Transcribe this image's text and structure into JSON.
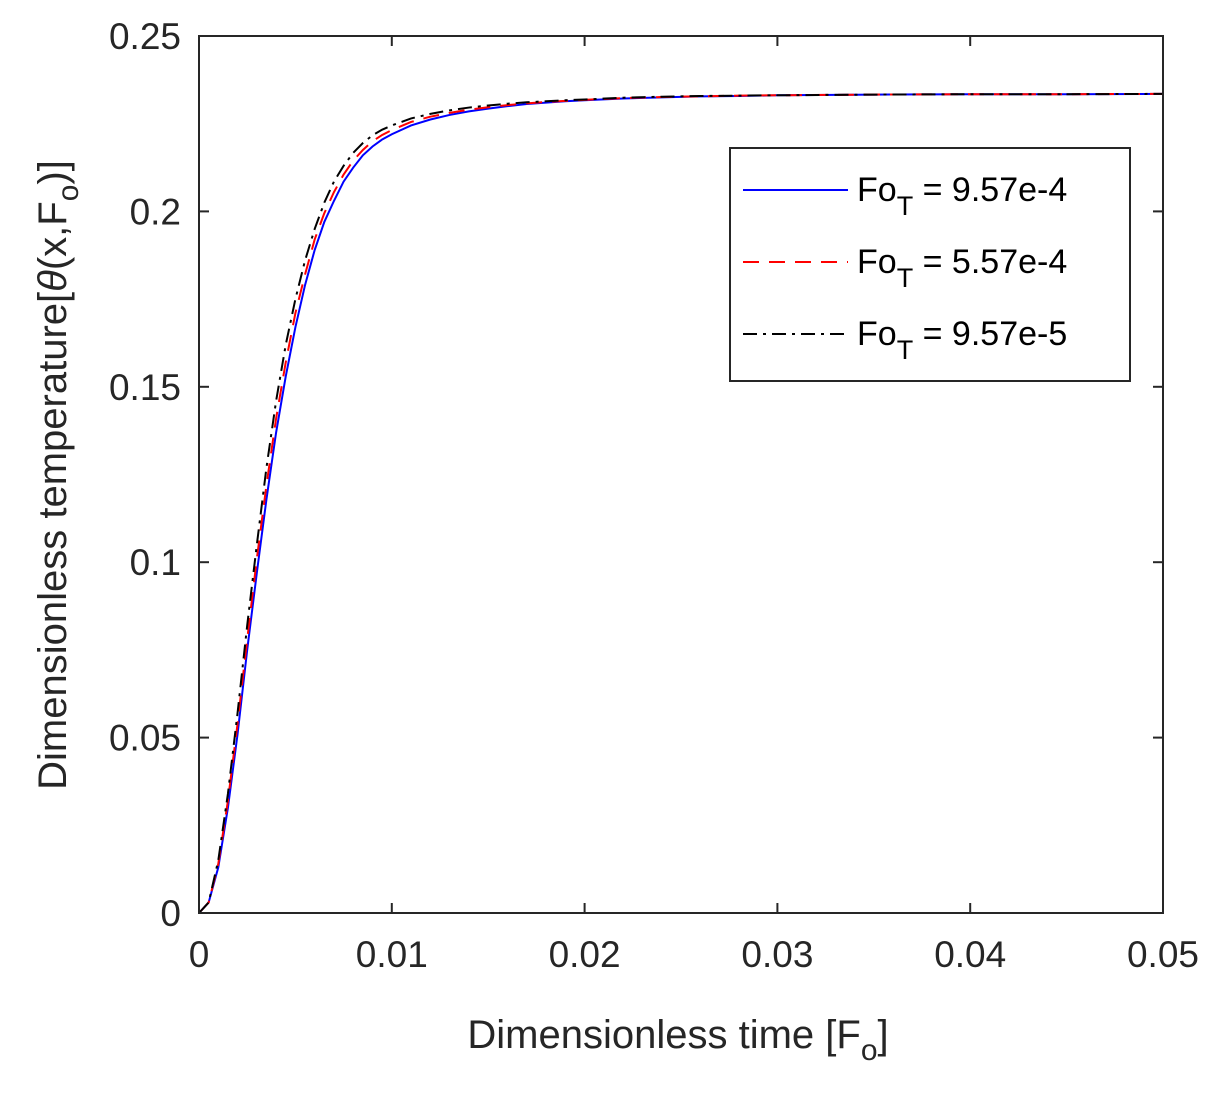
{
  "chart_data": {
    "type": "line",
    "xlabel": "Dimensionless time [F",
    "xlabel_sub": "o",
    "xlabel_end": "]",
    "ylabel": "Dimensionless temperature[",
    "ylabel_theta": "θ",
    "ylabel_mid": "(x,F",
    "ylabel_sub": "o",
    "ylabel_end": ")]",
    "xlim": [
      0,
      0.05
    ],
    "ylim": [
      0,
      0.25
    ],
    "x_ticks": [
      "0",
      "0.01",
      "0.02",
      "0.03",
      "0.04",
      "0.05"
    ],
    "y_ticks": [
      "0",
      "0.05",
      "0.1",
      "0.15",
      "0.2",
      "0.25"
    ],
    "grid": false,
    "legend_position": "top-right",
    "series": [
      {
        "name": "Fo_T = 9.57e-4",
        "label_main": "Fo",
        "label_sub": "T",
        "label_rest": " = 9.57e-4",
        "color": "#0000ff",
        "style": "solid",
        "x": [
          0,
          0.0005,
          0.001,
          0.0015,
          0.002,
          0.0025,
          0.003,
          0.0035,
          0.004,
          0.0045,
          0.005,
          0.0055,
          0.006,
          0.0065,
          0.007,
          0.0075,
          0.008,
          0.0085,
          0.009,
          0.0095,
          0.01,
          0.011,
          0.012,
          0.013,
          0.014,
          0.015,
          0.016,
          0.017,
          0.018,
          0.019,
          0.02,
          0.022,
          0.024,
          0.026,
          0.028,
          0.03,
          0.035,
          0.04,
          0.045,
          0.05
        ],
        "y": [
          0,
          0.003,
          0.013,
          0.03,
          0.051,
          0.075,
          0.097,
          0.118,
          0.137,
          0.153,
          0.167,
          0.179,
          0.189,
          0.197,
          0.203,
          0.2085,
          0.2125,
          0.216,
          0.2185,
          0.2205,
          0.222,
          0.2245,
          0.2262,
          0.2275,
          0.2285,
          0.2293,
          0.23,
          0.2306,
          0.231,
          0.2314,
          0.2317,
          0.2322,
          0.2325,
          0.2328,
          0.2329,
          0.2331,
          0.2333,
          0.2334,
          0.2334,
          0.2335
        ]
      },
      {
        "name": "Fo_T = 5.57e-4",
        "label_main": "Fo",
        "label_sub": "T",
        "label_rest": " = 5.57e-4",
        "color": "#ff0000",
        "style": "dashed",
        "x": [
          0,
          0.0005,
          0.001,
          0.0015,
          0.002,
          0.0025,
          0.003,
          0.0035,
          0.004,
          0.0045,
          0.005,
          0.0055,
          0.006,
          0.0065,
          0.007,
          0.0075,
          0.008,
          0.0085,
          0.009,
          0.0095,
          0.01,
          0.011,
          0.012,
          0.013,
          0.014,
          0.015,
          0.016,
          0.017,
          0.018,
          0.019,
          0.02,
          0.022,
          0.024,
          0.026,
          0.028,
          0.03,
          0.035,
          0.04,
          0.045,
          0.05
        ],
        "y": [
          0,
          0.003,
          0.014,
          0.032,
          0.054,
          0.078,
          0.101,
          0.122,
          0.141,
          0.157,
          0.171,
          0.182,
          0.192,
          0.1995,
          0.2055,
          0.2105,
          0.2145,
          0.2175,
          0.22,
          0.2218,
          0.2232,
          0.2255,
          0.227,
          0.2281,
          0.229,
          0.2297,
          0.2303,
          0.2308,
          0.2312,
          0.2315,
          0.2318,
          0.2323,
          0.2326,
          0.2328,
          0.233,
          0.2331,
          0.2333,
          0.2334,
          0.2334,
          0.2335
        ]
      },
      {
        "name": "Fo_T = 9.57e-5",
        "label_main": "Fo",
        "label_sub": "T",
        "label_rest": " = 9.57e-5",
        "color": "#000000",
        "style": "dashdot",
        "x": [
          0,
          0.0005,
          0.001,
          0.0015,
          0.002,
          0.0025,
          0.003,
          0.0035,
          0.004,
          0.0045,
          0.005,
          0.0055,
          0.006,
          0.0065,
          0.007,
          0.0075,
          0.008,
          0.0085,
          0.009,
          0.0095,
          0.01,
          0.011,
          0.012,
          0.013,
          0.014,
          0.015,
          0.016,
          0.017,
          0.018,
          0.019,
          0.02,
          0.022,
          0.024,
          0.026,
          0.028,
          0.03,
          0.035,
          0.04,
          0.045,
          0.05
        ],
        "y": [
          0,
          0.003,
          0.015,
          0.034,
          0.057,
          0.082,
          0.105,
          0.127,
          0.146,
          0.162,
          0.175,
          0.186,
          0.195,
          0.2025,
          0.2085,
          0.213,
          0.2167,
          0.2195,
          0.2217,
          0.2233,
          0.2245,
          0.2265,
          0.2278,
          0.2288,
          0.2296,
          0.2302,
          0.2307,
          0.2311,
          0.2314,
          0.2317,
          0.2319,
          0.2324,
          0.2327,
          0.2329,
          0.233,
          0.2331,
          0.2333,
          0.2334,
          0.2334,
          0.2335
        ]
      }
    ]
  }
}
